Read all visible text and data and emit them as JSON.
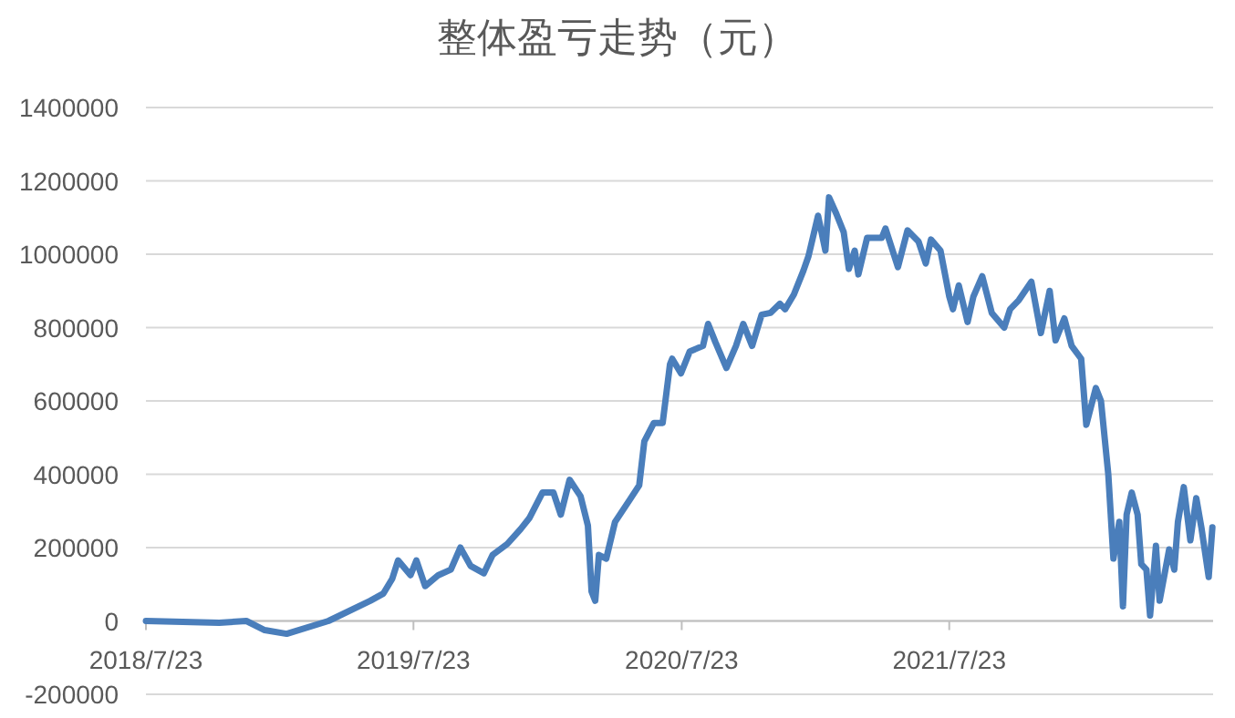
{
  "chart_data": {
    "type": "line",
    "title": "整体盈亏走势（元）",
    "grid": "y",
    "marker": "none",
    "line_style": "solid",
    "xlim": [
      "2018-07-23",
      "2022-07-18"
    ],
    "xticks": [
      {
        "value": "2018-07-23",
        "label": "2018/7/23"
      },
      {
        "value": "2019-07-23",
        "label": "2019/7/23"
      },
      {
        "value": "2020-07-23",
        "label": "2020/7/23"
      },
      {
        "value": "2021-07-23",
        "label": "2021/7/23"
      }
    ],
    "ylim": [
      -200000,
      1400000
    ],
    "yticks": [
      -200000,
      0,
      200000,
      400000,
      600000,
      800000,
      1000000,
      1200000,
      1400000
    ],
    "x": [
      "2018-07-23",
      "2018-10-31",
      "2018-12-07",
      "2019-01-01",
      "2019-01-31",
      "2019-03-29",
      "2019-05-25",
      "2019-06-12",
      "2019-06-24",
      "2019-07-02",
      "2019-07-19",
      "2019-07-27",
      "2019-08-08",
      "2019-08-26",
      "2019-09-12",
      "2019-09-25",
      "2019-10-09",
      "2019-10-27",
      "2019-11-08",
      "2019-11-28",
      "2019-12-16",
      "2019-12-28",
      "2020-01-15",
      "2020-01-30",
      "2020-02-09",
      "2020-02-21",
      "2020-03-07",
      "2020-03-17",
      "2020-03-22",
      "2020-03-27",
      "2020-04-01",
      "2020-04-11",
      "2020-04-23",
      "2020-05-13",
      "2020-05-26",
      "2020-06-02",
      "2020-06-15",
      "2020-06-27",
      "2020-07-07",
      "2020-07-10",
      "2020-07-22",
      "2020-08-03",
      "2020-08-21",
      "2020-08-28",
      "2020-09-07",
      "2020-09-22",
      "2020-10-05",
      "2020-10-15",
      "2020-10-27",
      "2020-11-09",
      "2020-11-21",
      "2020-12-04",
      "2020-12-11",
      "2020-12-23",
      "2021-01-05",
      "2021-01-12",
      "2021-01-25",
      "2021-02-04",
      "2021-02-09",
      "2021-02-19",
      "2021-03-01",
      "2021-03-08",
      "2021-03-16",
      "2021-03-21",
      "2021-04-02",
      "2021-04-22",
      "2021-04-27",
      "2021-05-14",
      "2021-05-27",
      "2021-06-11",
      "2021-06-21",
      "2021-06-28",
      "2021-07-11",
      "2021-07-23",
      "2021-07-28",
      "2021-08-05",
      "2021-08-17",
      "2021-08-25",
      "2021-09-06",
      "2021-09-19",
      "2021-10-06",
      "2021-10-14",
      "2021-10-26",
      "2021-11-12",
      "2021-11-25",
      "2021-12-07",
      "2021-12-15",
      "2021-12-27",
      "2022-01-06",
      "2022-01-19",
      "2022-01-26",
      "2022-02-08",
      "2022-02-15",
      "2022-02-25",
      "2022-03-04",
      "2022-03-12",
      "2022-03-17",
      "2022-03-22",
      "2022-03-29",
      "2022-04-06",
      "2022-04-11",
      "2022-04-18",
      "2022-04-23",
      "2022-05-01",
      "2022-05-06",
      "2022-05-19",
      "2022-05-26",
      "2022-05-31",
      "2022-06-08",
      "2022-06-17",
      "2022-06-25",
      "2022-07-02",
      "2022-07-12",
      "2022-07-17"
    ],
    "series": [
      {
        "color": "#4a7ebb",
        "values": [
          0,
          -5000,
          0,
          -25000,
          -35000,
          0,
          55000,
          75000,
          115000,
          165000,
          125000,
          165000,
          95000,
          125000,
          140000,
          200000,
          150000,
          130000,
          180000,
          210000,
          250000,
          280000,
          350000,
          350000,
          290000,
          385000,
          340000,
          260000,
          80000,
          55000,
          180000,
          170000,
          270000,
          330000,
          370000,
          490000,
          540000,
          540000,
          700000,
          715000,
          675000,
          735000,
          750000,
          810000,
          760000,
          690000,
          750000,
          810000,
          750000,
          835000,
          840000,
          865000,
          850000,
          890000,
          955000,
          995000,
          1105000,
          1010000,
          1155000,
          1110000,
          1060000,
          960000,
          1010000,
          945000,
          1045000,
          1045000,
          1070000,
          965000,
          1065000,
          1035000,
          975000,
          1040000,
          1010000,
          885000,
          850000,
          915000,
          815000,
          885000,
          940000,
          840000,
          800000,
          850000,
          875000,
          925000,
          785000,
          900000,
          765000,
          825000,
          750000,
          715000,
          535000,
          635000,
          600000,
          400000,
          170000,
          270000,
          40000,
          290000,
          350000,
          290000,
          155000,
          140000,
          15000,
          205000,
          55000,
          195000,
          140000,
          270000,
          365000,
          220000,
          335000,
          255000,
          120000,
          255000
        ]
      }
    ]
  }
}
